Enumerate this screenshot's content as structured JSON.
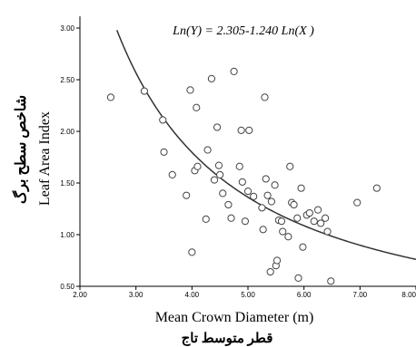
{
  "chart_data": {
    "type": "scatter",
    "equation": "Ln(Y) = 2.305-1.240 Ln(X )",
    "xlabel": "Mean Crown Diameter (m)",
    "xlabel_fa": "قطر متوسط تاج",
    "ylabel": "Leaf Area Index",
    "ylabel_fa": "شاخص سطح برگ",
    "xlim": [
      2.0,
      8.0
    ],
    "ylim": [
      0.5,
      3.0
    ],
    "x_ticks": [
      "2.00",
      "3.00",
      "4.00",
      "5.00",
      "6.00",
      "7.00",
      "8.00"
    ],
    "y_ticks": [
      "0.50",
      "1.00",
      "1.50",
      "2.00",
      "2.50",
      "3.00"
    ],
    "fit": {
      "model": "power",
      "intercept": 2.305,
      "slope": -1.24
    },
    "points": [
      {
        "x": 2.55,
        "y": 2.33
      },
      {
        "x": 3.15,
        "y": 2.39
      },
      {
        "x": 3.48,
        "y": 2.11
      },
      {
        "x": 3.5,
        "y": 1.8
      },
      {
        "x": 3.65,
        "y": 1.58
      },
      {
        "x": 3.9,
        "y": 1.38
      },
      {
        "x": 3.97,
        "y": 2.4
      },
      {
        "x": 4.0,
        "y": 0.83
      },
      {
        "x": 4.05,
        "y": 1.62
      },
      {
        "x": 4.08,
        "y": 2.23
      },
      {
        "x": 4.1,
        "y": 1.66
      },
      {
        "x": 4.25,
        "y": 1.15
      },
      {
        "x": 4.28,
        "y": 1.82
      },
      {
        "x": 4.35,
        "y": 2.51
      },
      {
        "x": 4.4,
        "y": 1.53
      },
      {
        "x": 4.45,
        "y": 2.04
      },
      {
        "x": 4.48,
        "y": 1.67
      },
      {
        "x": 4.5,
        "y": 1.58
      },
      {
        "x": 4.55,
        "y": 1.4
      },
      {
        "x": 4.65,
        "y": 1.29
      },
      {
        "x": 4.7,
        "y": 1.16
      },
      {
        "x": 4.75,
        "y": 2.58
      },
      {
        "x": 4.85,
        "y": 1.66
      },
      {
        "x": 4.88,
        "y": 2.01
      },
      {
        "x": 4.9,
        "y": 1.51
      },
      {
        "x": 4.95,
        "y": 1.13
      },
      {
        "x": 5.0,
        "y": 1.42
      },
      {
        "x": 5.02,
        "y": 2.01
      },
      {
        "x": 5.1,
        "y": 1.37
      },
      {
        "x": 5.25,
        "y": 1.26
      },
      {
        "x": 5.27,
        "y": 1.05
      },
      {
        "x": 5.3,
        "y": 2.33
      },
      {
        "x": 5.32,
        "y": 1.54
      },
      {
        "x": 5.35,
        "y": 1.38
      },
      {
        "x": 5.4,
        "y": 0.64
      },
      {
        "x": 5.42,
        "y": 1.32
      },
      {
        "x": 5.48,
        "y": 1.48
      },
      {
        "x": 5.5,
        "y": 0.7
      },
      {
        "x": 5.52,
        "y": 0.75
      },
      {
        "x": 5.55,
        "y": 1.14
      },
      {
        "x": 5.6,
        "y": 1.13
      },
      {
        "x": 5.62,
        "y": 1.03
      },
      {
        "x": 5.72,
        "y": 0.98
      },
      {
        "x": 5.75,
        "y": 1.66
      },
      {
        "x": 5.78,
        "y": 1.31
      },
      {
        "x": 5.82,
        "y": 1.29
      },
      {
        "x": 5.88,
        "y": 1.16
      },
      {
        "x": 5.9,
        "y": 0.58
      },
      {
        "x": 5.95,
        "y": 1.45
      },
      {
        "x": 5.98,
        "y": 0.88
      },
      {
        "x": 6.05,
        "y": 1.19
      },
      {
        "x": 6.1,
        "y": 1.21
      },
      {
        "x": 6.18,
        "y": 1.13
      },
      {
        "x": 6.25,
        "y": 1.24
      },
      {
        "x": 6.3,
        "y": 1.11
      },
      {
        "x": 6.38,
        "y": 1.16
      },
      {
        "x": 6.42,
        "y": 1.03
      },
      {
        "x": 6.48,
        "y": 0.55
      },
      {
        "x": 6.95,
        "y": 1.31
      },
      {
        "x": 7.3,
        "y": 1.45
      }
    ]
  }
}
